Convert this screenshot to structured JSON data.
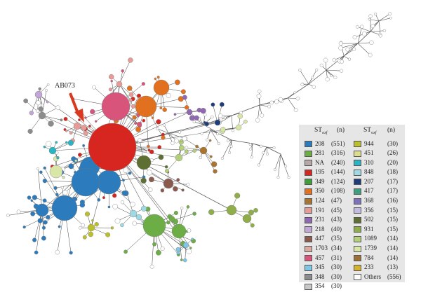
{
  "annotation": {
    "label": "AB073",
    "arrow_color": "#d93a1f"
  },
  "legend": {
    "header_st": "ST",
    "header_st_sub": "oxf",
    "header_n": "(n)",
    "columns": [
      [
        {
          "label": "208",
          "count": "(551)",
          "color": "#2b7bbd"
        },
        {
          "label": "281",
          "count": "(316)",
          "color": "#6cae45"
        },
        {
          "label": "NA",
          "count": "(240)",
          "color": "#b7a8a8"
        },
        {
          "label": "195",
          "count": "(144)",
          "color": "#d6261f"
        },
        {
          "label": "349",
          "count": "(124)",
          "color": "#3f9e3a"
        },
        {
          "label": "350",
          "count": "(108)",
          "color": "#e1701f"
        },
        {
          "label": "124",
          "count": "(47)",
          "color": "#a9742d"
        },
        {
          "label": "191",
          "count": "(45)",
          "color": "#e89a96"
        },
        {
          "label": "231",
          "count": "(43)",
          "color": "#8f67b2"
        },
        {
          "label": "218",
          "count": "(40)",
          "color": "#c2a6d8"
        },
        {
          "label": "447",
          "count": "(35)",
          "color": "#8b5a4c"
        },
        {
          "label": "1703",
          "count": "(34)",
          "color": "#d9aaa0"
        },
        {
          "label": "457",
          "count": "(31)",
          "color": "#d9547a"
        },
        {
          "label": "345",
          "count": "(30)",
          "color": "#7ec6e6"
        },
        {
          "label": "348",
          "count": "(30)",
          "color": "#8c8c8c"
        },
        {
          "label": "354",
          "count": "(30)",
          "color": "#c8c8c8"
        }
      ],
      [
        {
          "label": "944",
          "count": "(30)",
          "color": "#bcbf2c"
        },
        {
          "label": "451",
          "count": "(26)",
          "color": "#dedd8e"
        },
        {
          "label": "310",
          "count": "(20)",
          "color": "#2bb5c4"
        },
        {
          "label": "848",
          "count": "(18)",
          "color": "#9fd9e3"
        },
        {
          "label": "207",
          "count": "(17)",
          "color": "#1f3c7a"
        },
        {
          "label": "417",
          "count": "(17)",
          "color": "#3da07d"
        },
        {
          "label": "368",
          "count": "(16)",
          "color": "#7e72bf"
        },
        {
          "label": "356",
          "count": "(15)",
          "color": "#c4bbe0"
        },
        {
          "label": "502",
          "count": "(15)",
          "color": "#5e6f32"
        },
        {
          "label": "931",
          "count": "(15)",
          "color": "#8fae4a"
        },
        {
          "label": "1089",
          "count": "(14)",
          "color": "#b3cf7a"
        },
        {
          "label": "1739",
          "count": "(14)",
          "color": "#d8e6a8"
        },
        {
          "label": "784",
          "count": "(14)",
          "color": "#9b6f35"
        },
        {
          "label": "233",
          "count": "(13)",
          "color": "#d6b22a"
        },
        {
          "label": "Others",
          "count": "(556)",
          "color": "#ffffff"
        }
      ]
    ]
  }
}
